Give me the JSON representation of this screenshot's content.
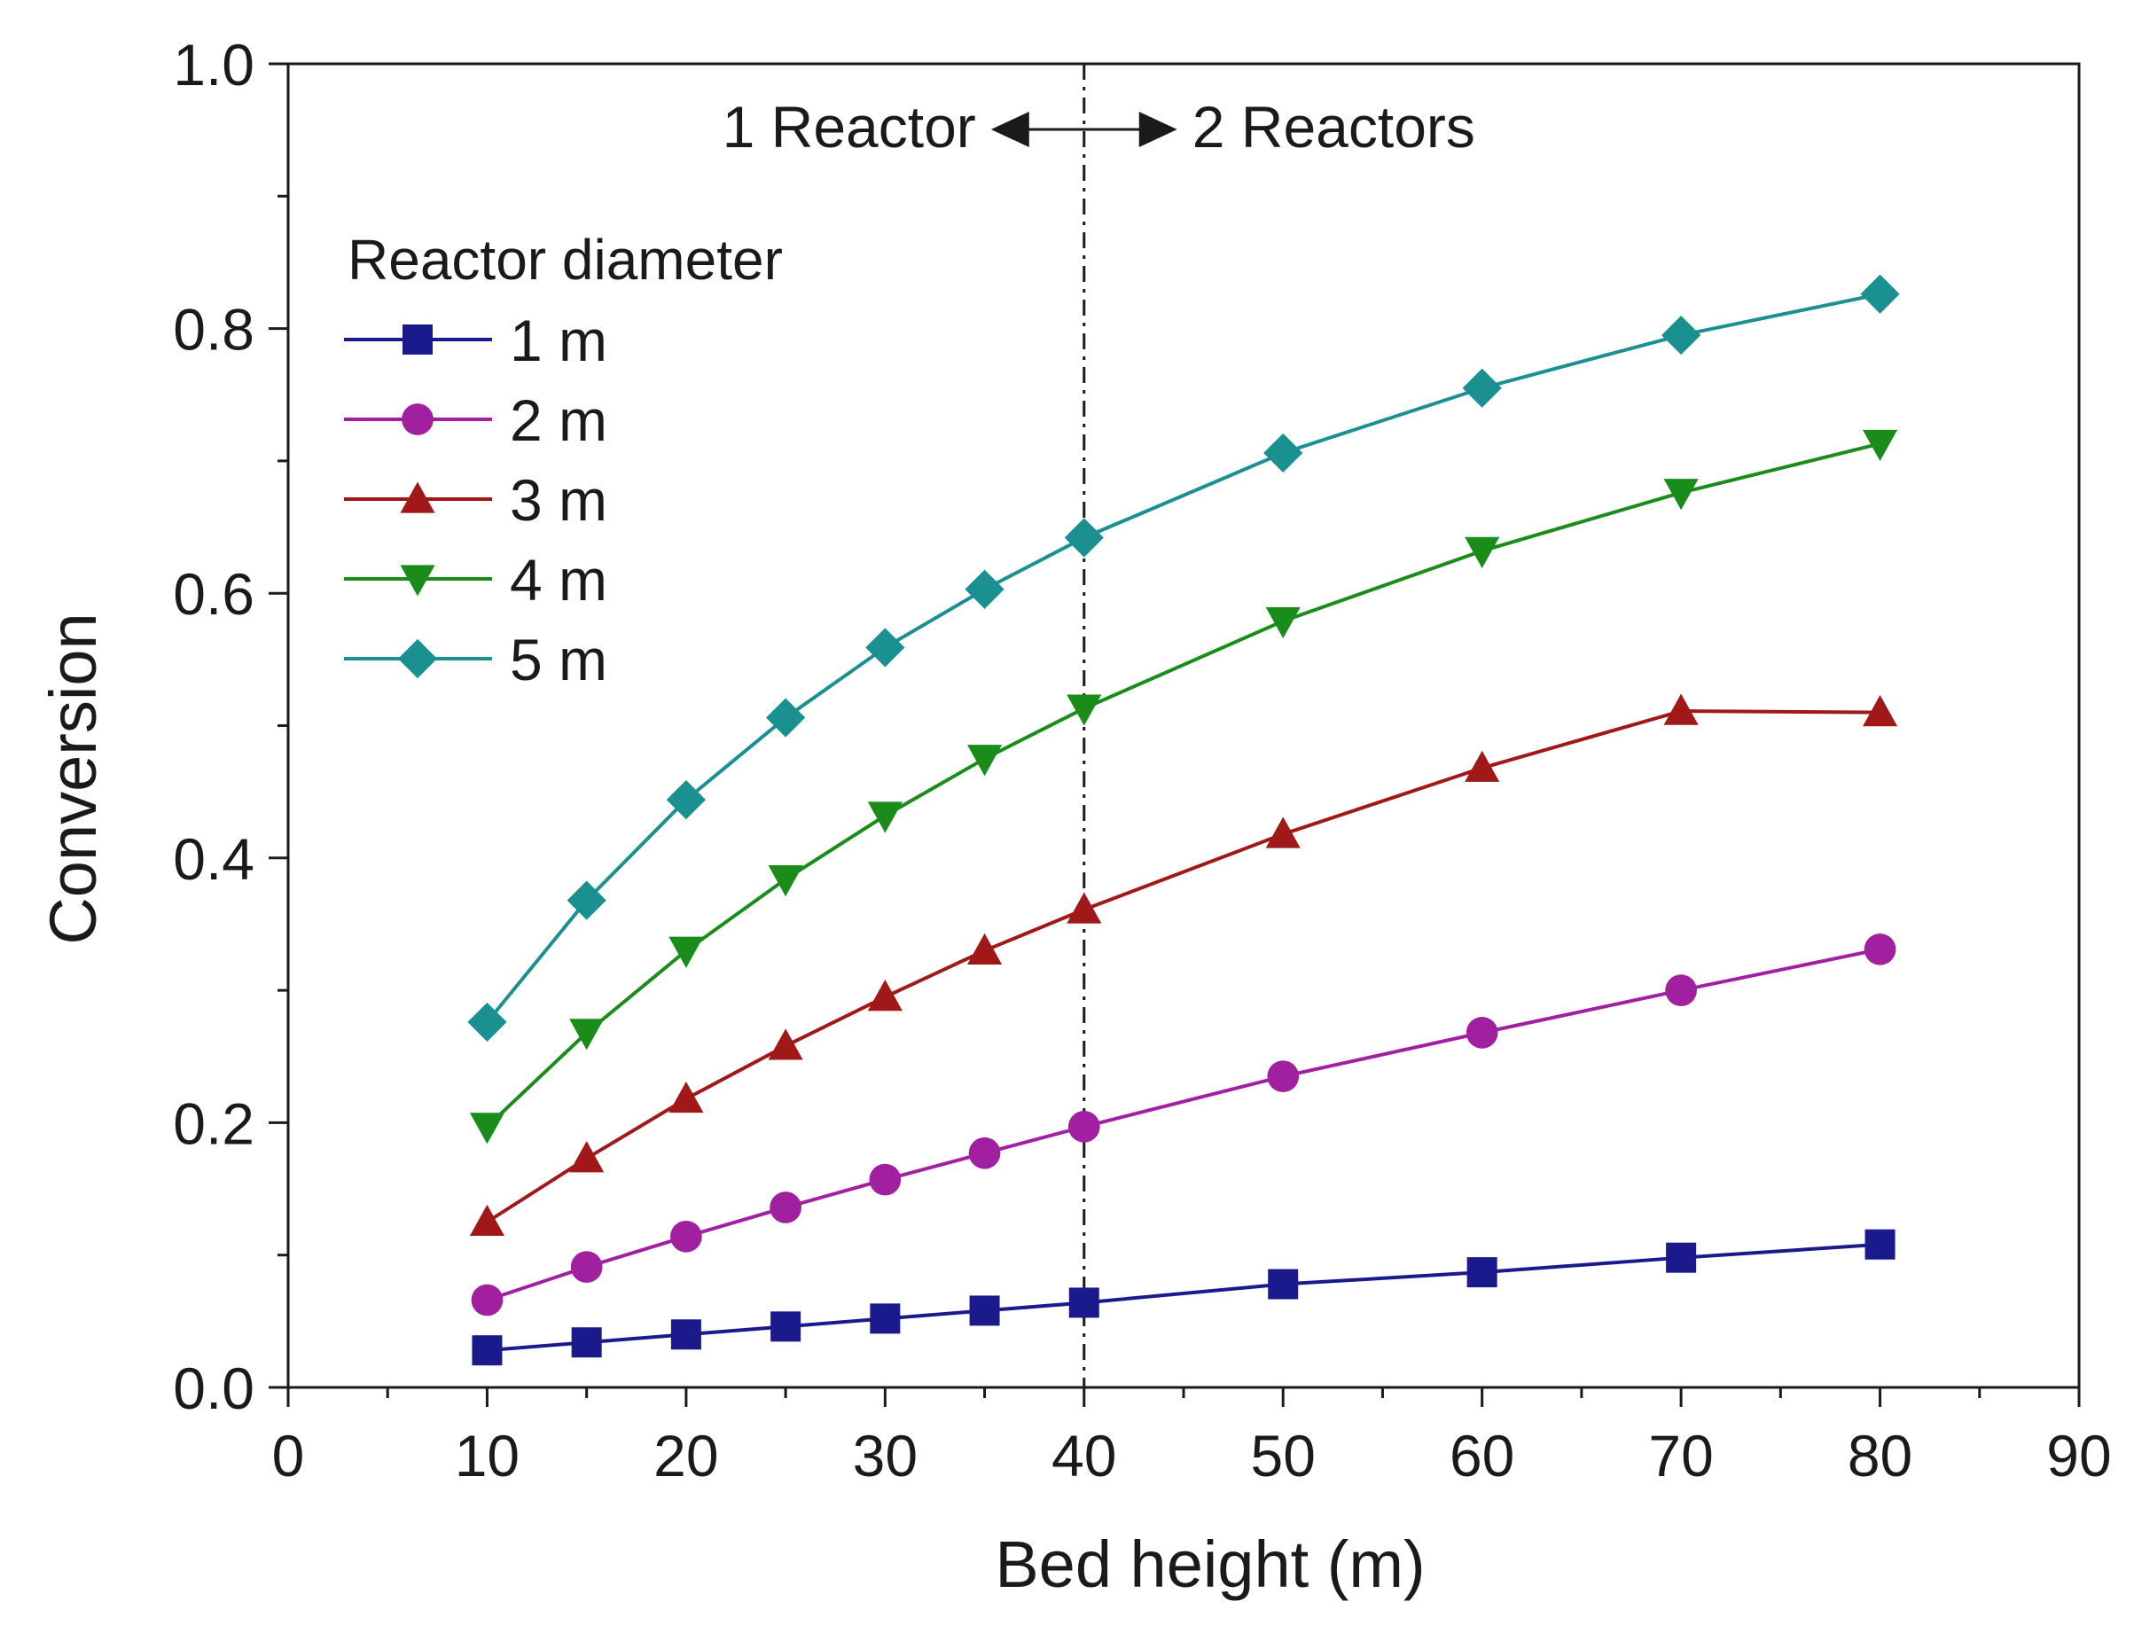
{
  "chart_data": {
    "type": "line",
    "title": "",
    "xlabel": "Bed height (m)",
    "ylabel": "Conversion",
    "xlim": [
      0,
      90
    ],
    "ylim": [
      0,
      1.0
    ],
    "x_ticks": [
      "0",
      "10",
      "20",
      "30",
      "40",
      "50",
      "60",
      "70",
      "80",
      "90"
    ],
    "y_ticks": [
      "0.0",
      "0.2",
      "0.4",
      "0.6",
      "0.8",
      "1.0"
    ],
    "grid": false,
    "legend_title": "Reactor diameter",
    "legend_position": "top-left",
    "x": [
      10,
      15,
      20,
      25,
      30,
      35,
      40,
      50,
      60,
      70,
      80
    ],
    "series": [
      {
        "name": "1 m",
        "marker": "square",
        "color": "#1a1a8c",
        "values": [
          0.028,
          0.034,
          0.04,
          0.046,
          0.052,
          0.058,
          0.064,
          0.078,
          0.087,
          0.098,
          0.108
        ]
      },
      {
        "name": "2 m",
        "marker": "circle",
        "color": "#a020a0",
        "values": [
          0.066,
          0.091,
          0.114,
          0.136,
          0.157,
          0.177,
          0.197,
          0.235,
          0.268,
          0.3,
          0.331
        ]
      },
      {
        "name": "3 m",
        "marker": "triangle-up",
        "color": "#a01818",
        "values": [
          0.125,
          0.173,
          0.218,
          0.258,
          0.295,
          0.33,
          0.361,
          0.418,
          0.468,
          0.511,
          0.51
        ]
      },
      {
        "name": "4 m",
        "marker": "triangle-down",
        "color": "#1a8c1a",
        "values": [
          0.197,
          0.268,
          0.33,
          0.384,
          0.432,
          0.475,
          0.513,
          0.579,
          0.632,
          0.676,
          0.713
        ]
      },
      {
        "name": "5 m",
        "marker": "diamond",
        "color": "#1a9090",
        "values": [
          0.276,
          0.368,
          0.444,
          0.506,
          0.559,
          0.603,
          0.642,
          0.706,
          0.755,
          0.795,
          0.826
        ]
      }
    ],
    "annotations": {
      "divider_x": 40,
      "left_label": "1 Reactor",
      "right_label": "2 Reactors"
    }
  }
}
